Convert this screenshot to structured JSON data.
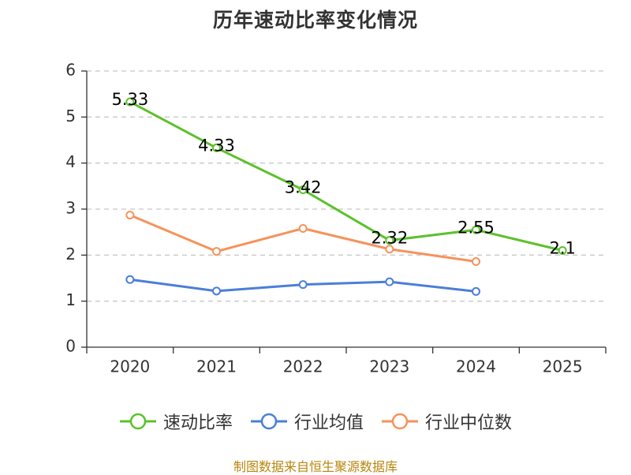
{
  "chart_data": {
    "type": "line",
    "title": "历年速动比率变化情况",
    "categories": [
      "2020",
      "2021",
      "2022",
      "2023",
      "2024",
      "2025"
    ],
    "ylim": [
      0,
      6
    ],
    "yticks": [
      "0",
      "1",
      "2",
      "3",
      "4",
      "5",
      "6"
    ],
    "grid": true,
    "legend_position": "bottom",
    "series": [
      {
        "name": "速动比率",
        "color": "#5cc12b",
        "values": [
          5.33,
          4.33,
          3.42,
          2.32,
          2.55,
          2.1
        ],
        "labels": [
          "5.33",
          "4.33",
          "3.42",
          "2.32",
          "2.55",
          "2.1"
        ],
        "show_labels": true
      },
      {
        "name": "行业均值",
        "color": "#4a7fd9",
        "values": [
          1.47,
          1.22,
          1.36,
          1.42,
          1.21,
          null
        ],
        "show_labels": false
      },
      {
        "name": "行业中位数",
        "color": "#f7925a",
        "values": [
          2.87,
          2.08,
          2.58,
          2.13,
          1.86,
          null
        ],
        "show_labels": false
      }
    ]
  },
  "source": "制图数据来自恒生聚源数据库"
}
